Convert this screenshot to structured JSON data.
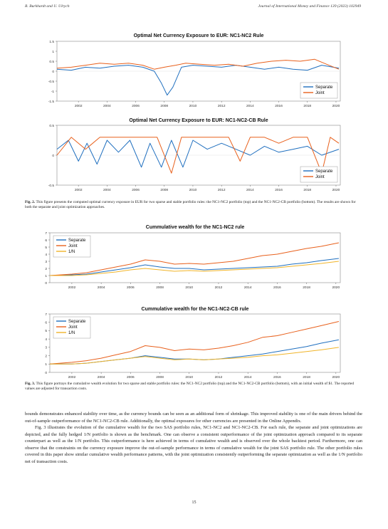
{
  "header": {
    "left": "R. Burkhardt and U. Ulrych",
    "right": "Journal of International Money and Finance 139 (2023) 102949"
  },
  "fig2": {
    "caption_label": "Fig. 2.",
    "caption_text": "This figure presents the computed optimal currency exposure in EUR for two sparse and stable portfolio rules: the NC1-NC2 portfolio (top) and the NC1-NC2-CB portfolio (bottom). The results are shown for both the separate and joint optimization approaches."
  },
  "fig3": {
    "caption_label": "Fig. 3.",
    "caption_text": "This figure portrays the cumulative wealth evolution for two sparse and stable portfolio rules: the NC1-NC2 portfolio (top) and the NC1-NC2-CB portfolio (bottom), with an initial wealth of $1. The reported values are adjusted for transaction costs."
  },
  "body": {
    "para1": "bounds demonstrates enhanced stability over time, as the currency bounds can be seen as an additional form of shrinkage. This improved stability is one of the main drivers behind the out-of-sample outperformance of the NC1-NC2-CB rule. Additionally, the optimal exposures for other currencies are presented in the Online Appendix.",
    "para2": "Fig. 3 illustrates the evolution of the cumulative wealth for the two SAS portfolio rules, NC1-NC2 and NC1-NC2-CB. For each rule, the separate and joint optimizations are depicted, and the fully hedged 1/N portfolio is shown as the benchmark. One can observe a consistent outperformance of the joint optimization approach compared to its separate counterpart as well as the 1/N portfolio. This outperformance is here achieved in terms of cumulative wealth and is observed over the whole backtest period. Furthermore, one can observe that the constraints on the currency exposure improve the out-of-sample performance in terms of cumulative wealth for the joint SAS portfolio rule. The other portfolio rules covered in this paper show similar cumulative wealth performance patterns, with the joint optimization consistently outperforming the separate optimization as well as the 1/N portfolio net of transaction costs."
  },
  "page_number": "15",
  "colors": {
    "separate": "#1f6fbf",
    "joint": "#e8601c",
    "equal": "#f0b429"
  },
  "chart_data": [
    {
      "type": "line",
      "title": "Optimal Net Currency Exposure to EUR: NC1-NC2 Rule",
      "xticks": [
        "2002",
        "2004",
        "2006",
        "2008",
        "2010",
        "2012",
        "2014",
        "2016",
        "2018",
        "2020"
      ],
      "yticks": [
        "1.5",
        "1",
        "0.5",
        "0",
        "-0.5",
        "-1",
        "-1.5"
      ],
      "ylim": [
        -1.5,
        1.5
      ],
      "xlim": [
        2000.5,
        2020.3
      ],
      "legend_position": "bottom-right",
      "series": [
        {
          "name": "Separate",
          "color": "#1f6fbf",
          "points": [
            [
              2000.5,
              0.1
            ],
            [
              2001.5,
              0.05
            ],
            [
              2002.5,
              0.2
            ],
            [
              2003.5,
              0.15
            ],
            [
              2004.5,
              0.25
            ],
            [
              2005.5,
              0.3
            ],
            [
              2006.5,
              0.2
            ],
            [
              2007.3,
              0.0
            ],
            [
              2007.8,
              -0.6
            ],
            [
              2008.2,
              -1.2
            ],
            [
              2008.6,
              -0.8
            ],
            [
              2009.2,
              0.2
            ],
            [
              2010,
              0.3
            ],
            [
              2011,
              0.25
            ],
            [
              2012,
              0.2
            ],
            [
              2013,
              0.3
            ],
            [
              2014,
              0.2
            ],
            [
              2015,
              0.1
            ],
            [
              2016,
              0.2
            ],
            [
              2017,
              0.1
            ],
            [
              2018,
              0.05
            ],
            [
              2019,
              0.3
            ],
            [
              2020.2,
              0.15
            ]
          ]
        },
        {
          "name": "Joint",
          "color": "#e8601c",
          "points": [
            [
              2000.5,
              0.15
            ],
            [
              2001.5,
              0.2
            ],
            [
              2002.5,
              0.3
            ],
            [
              2003.5,
              0.4
            ],
            [
              2004.5,
              0.35
            ],
            [
              2005.5,
              0.4
            ],
            [
              2006.5,
              0.3
            ],
            [
              2007.3,
              0.1
            ],
            [
              2008,
              0.2
            ],
            [
              2008.8,
              0.3
            ],
            [
              2009.5,
              0.4
            ],
            [
              2010.5,
              0.35
            ],
            [
              2011.5,
              0.3
            ],
            [
              2012.5,
              0.35
            ],
            [
              2013.5,
              0.25
            ],
            [
              2014.5,
              0.4
            ],
            [
              2015.5,
              0.5
            ],
            [
              2016.5,
              0.55
            ],
            [
              2017.5,
              0.5
            ],
            [
              2018.5,
              0.6
            ],
            [
              2019.5,
              0.3
            ],
            [
              2020.2,
              0.1
            ]
          ]
        }
      ]
    },
    {
      "type": "line",
      "title": "Optimal Net Currency Exposure to EUR: NC1-NC2-CB Rule",
      "xticks": [
        "2002",
        "2004",
        "2006",
        "2008",
        "2010",
        "2012",
        "2014",
        "2016",
        "2018",
        "2020"
      ],
      "yticks": [
        "0.5",
        "0",
        "-0.5"
      ],
      "ylim": [
        -0.5,
        0.5
      ],
      "xlim": [
        2000.5,
        2020.3
      ],
      "legend_position": "bottom-right",
      "series": [
        {
          "name": "Separate",
          "color": "#1f6fbf",
          "points": [
            [
              2000.5,
              0.1
            ],
            [
              2001.3,
              0.25
            ],
            [
              2002,
              -0.1
            ],
            [
              2002.6,
              0.2
            ],
            [
              2003.3,
              -0.15
            ],
            [
              2004,
              0.25
            ],
            [
              2004.8,
              0.05
            ],
            [
              2005.6,
              0.25
            ],
            [
              2006.4,
              -0.2
            ],
            [
              2007,
              0.2
            ],
            [
              2007.8,
              -0.2
            ],
            [
              2008.5,
              0.25
            ],
            [
              2009.3,
              -0.2
            ],
            [
              2010,
              0.25
            ],
            [
              2011,
              0.1
            ],
            [
              2012,
              0.2
            ],
            [
              2013,
              0.1
            ],
            [
              2014,
              0.0
            ],
            [
              2015,
              0.15
            ],
            [
              2016,
              0.05
            ],
            [
              2017,
              0.1
            ],
            [
              2018,
              0.15
            ],
            [
              2019,
              0.0
            ],
            [
              2020.2,
              0.1
            ]
          ]
        },
        {
          "name": "Joint",
          "color": "#e8601c",
          "points": [
            [
              2000.5,
              0.0
            ],
            [
              2001.5,
              0.3
            ],
            [
              2002.5,
              0.1
            ],
            [
              2003.5,
              0.3
            ],
            [
              2004.5,
              0.3
            ],
            [
              2005.5,
              0.3
            ],
            [
              2006.5,
              0.3
            ],
            [
              2007.5,
              0.3
            ],
            [
              2008.5,
              -0.3
            ],
            [
              2009.2,
              0.3
            ],
            [
              2010.5,
              0.3
            ],
            [
              2011.5,
              0.3
            ],
            [
              2012.5,
              0.3
            ],
            [
              2013.3,
              -0.1
            ],
            [
              2014,
              0.3
            ],
            [
              2015,
              0.3
            ],
            [
              2016,
              0.2
            ],
            [
              2017,
              0.3
            ],
            [
              2018,
              0.3
            ],
            [
              2019,
              -0.3
            ],
            [
              2019.6,
              0.3
            ],
            [
              2020.2,
              0.2
            ]
          ]
        }
      ]
    },
    {
      "type": "line",
      "title": "Cummulative wealth for the NC1-NC2 rule",
      "xticks": [
        "2002",
        "2004",
        "2006",
        "2008",
        "2010",
        "2012",
        "2014",
        "2016",
        "2018",
        "2020"
      ],
      "yticks": [
        "7",
        "6",
        "5",
        "4",
        "3",
        "2",
        "1",
        "0"
      ],
      "ylim": [
        0,
        7
      ],
      "xlim": [
        2000.5,
        2020.3
      ],
      "legend_position": "top-left",
      "series": [
        {
          "name": "Separate",
          "color": "#1f6fbf",
          "points": [
            [
              2000.5,
              1.0
            ],
            [
              2002,
              1.1
            ],
            [
              2003,
              1.2
            ],
            [
              2004,
              1.5
            ],
            [
              2005,
              1.8
            ],
            [
              2006,
              2.1
            ],
            [
              2007,
              2.5
            ],
            [
              2008,
              2.2
            ],
            [
              2009,
              2.0
            ],
            [
              2010,
              2.0
            ],
            [
              2011,
              1.8
            ],
            [
              2012,
              1.9
            ],
            [
              2013,
              2.0
            ],
            [
              2014,
              2.1
            ],
            [
              2015,
              2.2
            ],
            [
              2016,
              2.3
            ],
            [
              2017,
              2.6
            ],
            [
              2018,
              2.8
            ],
            [
              2019,
              3.1
            ],
            [
              2020.2,
              3.4
            ]
          ]
        },
        {
          "name": "Joint",
          "color": "#e8601c",
          "points": [
            [
              2000.5,
              1.0
            ],
            [
              2002,
              1.2
            ],
            [
              2003,
              1.4
            ],
            [
              2004,
              1.8
            ],
            [
              2005,
              2.2
            ],
            [
              2006,
              2.6
            ],
            [
              2007,
              3.2
            ],
            [
              2008,
              3.0
            ],
            [
              2009,
              2.6
            ],
            [
              2010,
              2.7
            ],
            [
              2011,
              2.6
            ],
            [
              2012,
              2.8
            ],
            [
              2013,
              3.0
            ],
            [
              2014,
              3.4
            ],
            [
              2015,
              3.8
            ],
            [
              2016,
              4.0
            ],
            [
              2017,
              4.4
            ],
            [
              2018,
              4.8
            ],
            [
              2019,
              5.1
            ],
            [
              2020.2,
              5.6
            ]
          ]
        },
        {
          "name": "1/N",
          "color": "#f0b429",
          "points": [
            [
              2000.5,
              1.0
            ],
            [
              2002,
              1.0
            ],
            [
              2003,
              1.1
            ],
            [
              2004,
              1.3
            ],
            [
              2005,
              1.5
            ],
            [
              2006,
              1.8
            ],
            [
              2007,
              2.0
            ],
            [
              2008,
              1.8
            ],
            [
              2009,
              1.6
            ],
            [
              2010,
              1.7
            ],
            [
              2011,
              1.6
            ],
            [
              2012,
              1.7
            ],
            [
              2013,
              1.8
            ],
            [
              2014,
              1.9
            ],
            [
              2015,
              2.0
            ],
            [
              2016,
              2.1
            ],
            [
              2017,
              2.3
            ],
            [
              2018,
              2.5
            ],
            [
              2019,
              2.7
            ],
            [
              2020.2,
              3.0
            ]
          ]
        }
      ]
    },
    {
      "type": "line",
      "title": "Cummulative wealth for the NC1-NC2-CB rule",
      "xticks": [
        "2002",
        "2004",
        "2006",
        "2008",
        "2010",
        "2012",
        "2014",
        "2016",
        "2018",
        "2020"
      ],
      "yticks": [
        "7",
        "6",
        "5",
        "4",
        "3",
        "2",
        "1",
        "0"
      ],
      "ylim": [
        0,
        7
      ],
      "xlim": [
        2000.5,
        2020.3
      ],
      "legend_position": "top-left",
      "series": [
        {
          "name": "Separate",
          "color": "#1f6fbf",
          "points": [
            [
              2000.5,
              1.0
            ],
            [
              2002,
              1.0
            ],
            [
              2003,
              1.1
            ],
            [
              2004,
              1.3
            ],
            [
              2005,
              1.5
            ],
            [
              2006,
              1.7
            ],
            [
              2007,
              2.0
            ],
            [
              2008,
              1.8
            ],
            [
              2009,
              1.6
            ],
            [
              2010,
              1.6
            ],
            [
              2011,
              1.5
            ],
            [
              2012,
              1.6
            ],
            [
              2013,
              1.8
            ],
            [
              2014,
              2.0
            ],
            [
              2015,
              2.2
            ],
            [
              2016,
              2.5
            ],
            [
              2017,
              2.8
            ],
            [
              2018,
              3.1
            ],
            [
              2019,
              3.5
            ],
            [
              2020.2,
              3.9
            ]
          ]
        },
        {
          "name": "Joint",
          "color": "#e8601c",
          "points": [
            [
              2000.5,
              1.0
            ],
            [
              2002,
              1.2
            ],
            [
              2003,
              1.4
            ],
            [
              2004,
              1.7
            ],
            [
              2005,
              2.1
            ],
            [
              2006,
              2.5
            ],
            [
              2007,
              3.2
            ],
            [
              2008,
              3.0
            ],
            [
              2009,
              2.6
            ],
            [
              2010,
              2.8
            ],
            [
              2011,
              2.7
            ],
            [
              2012,
              2.9
            ],
            [
              2013,
              3.2
            ],
            [
              2014,
              3.6
            ],
            [
              2015,
              4.2
            ],
            [
              2016,
              4.4
            ],
            [
              2017,
              4.8
            ],
            [
              2018,
              5.2
            ],
            [
              2019,
              5.6
            ],
            [
              2020.2,
              6.1
            ]
          ]
        },
        {
          "name": "1/N",
          "color": "#f0b429",
          "points": [
            [
              2000.5,
              1.0
            ],
            [
              2002,
              1.0
            ],
            [
              2003,
              1.1
            ],
            [
              2004,
              1.3
            ],
            [
              2005,
              1.5
            ],
            [
              2006,
              1.7
            ],
            [
              2007,
              1.9
            ],
            [
              2008,
              1.7
            ],
            [
              2009,
              1.5
            ],
            [
              2010,
              1.6
            ],
            [
              2011,
              1.5
            ],
            [
              2012,
              1.6
            ],
            [
              2013,
              1.7
            ],
            [
              2014,
              1.8
            ],
            [
              2015,
              2.0
            ],
            [
              2016,
              2.1
            ],
            [
              2017,
              2.3
            ],
            [
              2018,
              2.5
            ],
            [
              2019,
              2.7
            ],
            [
              2020.2,
              3.0
            ]
          ]
        }
      ]
    }
  ]
}
